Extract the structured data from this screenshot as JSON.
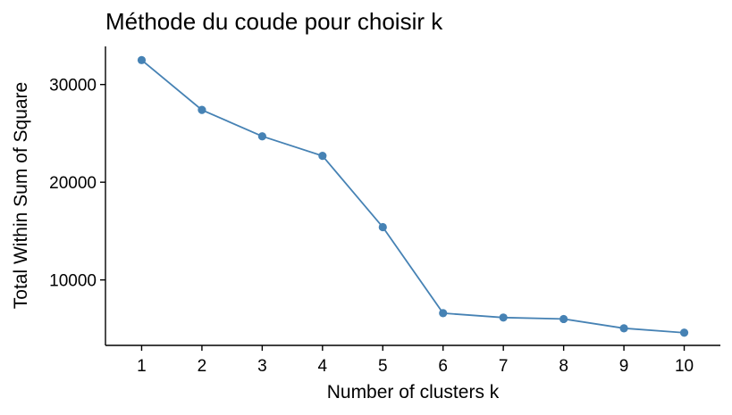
{
  "chart_data": {
    "type": "line",
    "title": "Méthode du coude pour choisir k",
    "xlabel": "Number of clusters k",
    "ylabel": "Total Within Sum of Square",
    "x": [
      1,
      2,
      3,
      4,
      5,
      6,
      7,
      8,
      9,
      10
    ],
    "xticks": [
      "1",
      "2",
      "3",
      "4",
      "5",
      "6",
      "7",
      "8",
      "9",
      "10"
    ],
    "yticks": [
      10000,
      20000,
      30000
    ],
    "ytick_labels": [
      "10000",
      "20000",
      "30000"
    ],
    "series": [
      {
        "values": [
          32500,
          27400,
          24700,
          22700,
          15400,
          6600,
          6150,
          6000,
          5050,
          4600
        ],
        "color": "#4682B4"
      }
    ],
    "xlim": [
      0.4,
      10.6
    ],
    "ylim": [
      3300,
      33900
    ],
    "grid": false,
    "legend": "none"
  }
}
